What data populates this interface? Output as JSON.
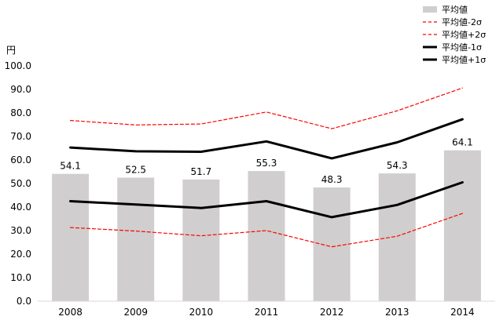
{
  "chart_data": {
    "type": "bar",
    "categories": [
      "2008",
      "2009",
      "2010",
      "2011",
      "2012",
      "2013",
      "2014"
    ],
    "ylabel": "円",
    "ylim": [
      0,
      100
    ],
    "ytick_step": 10,
    "ytick_labels": [
      "0.0",
      "10.0",
      "20.0",
      "30.0",
      "40.0",
      "50.0",
      "60.0",
      "70.0",
      "80.0",
      "90.0",
      "100.0"
    ],
    "grid": false,
    "legend_position": "top-right",
    "series": [
      {
        "name": "平均値",
        "kind": "bar",
        "color": "#d0cece",
        "values": [
          54.1,
          52.5,
          51.7,
          55.3,
          48.3,
          54.3,
          64.1
        ],
        "data_labels": [
          "54.1",
          "52.5",
          "51.7",
          "55.3",
          "48.3",
          "54.3",
          "64.1"
        ]
      },
      {
        "name": "平均値-2σ",
        "kind": "line",
        "style": "dashed",
        "color": "#ff0000",
        "values": [
          31.3,
          29.8,
          27.8,
          30.0,
          23.1,
          27.6,
          37.3
        ]
      },
      {
        "name": "平均値+2σ",
        "kind": "line",
        "style": "dashed",
        "color": "#ff0000",
        "values": [
          76.8,
          74.9,
          75.3,
          80.4,
          73.3,
          80.9,
          90.6
        ]
      },
      {
        "name": "平均値-1σ",
        "kind": "line",
        "style": "solid",
        "color": "#000000",
        "values": [
          42.5,
          41.1,
          39.6,
          42.5,
          35.7,
          40.9,
          50.5
        ]
      },
      {
        "name": "平均値+1σ",
        "kind": "line",
        "style": "solid",
        "color": "#000000",
        "values": [
          65.3,
          63.7,
          63.5,
          67.9,
          60.7,
          67.5,
          77.3
        ]
      }
    ]
  }
}
